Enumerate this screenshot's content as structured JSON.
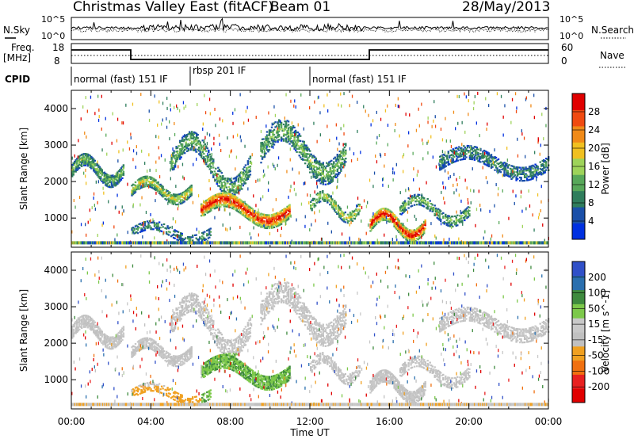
{
  "header": {
    "title": "Christmas Valley East (fitACF)",
    "beam": "Beam 01",
    "date": "28/May/2013"
  },
  "panels": {
    "nsky": {
      "label": "N.Sky",
      "right_label": "N.Search",
      "y_ticks": [
        "10^5",
        "10^0"
      ],
      "right_ticks": [
        "10^5",
        "10^0"
      ]
    },
    "freq": {
      "label": "Freq.",
      "unit": "[MHz]",
      "y_ticks": [
        "18",
        "8"
      ],
      "right_label": "Nave",
      "right_ticks": [
        "60",
        "0"
      ]
    },
    "cpid": {
      "label": "CPID",
      "modes": [
        {
          "text": "normal (fast) 151 IF",
          "start": 0,
          "end": 6
        },
        {
          "text": "rbsp 201 IF",
          "start": 6,
          "end": 12
        },
        {
          "text": "normal (fast) 151 IF",
          "start": 12,
          "end": 24
        }
      ]
    }
  },
  "colors": {
    "power": [
      "#0030e0",
      "#1a4fa8",
      "#2f7d5c",
      "#58a85a",
      "#9ed35a",
      "#f0c020",
      "#f08a18",
      "#f04a10",
      "#e00000"
    ],
    "velocity": [
      "#3050c8",
      "#2a6fae",
      "#3e8a3e",
      "#7cc84a",
      "#c8c8c8",
      "#c0c0c0",
      "#f0a020",
      "#f07010",
      "#e82020",
      "#e00000"
    ]
  },
  "chart_data": [
    {
      "type": "heatmap",
      "name": "power",
      "ylabel": "Slant Range [km]",
      "x_ticks": [
        "00:00",
        "04:00",
        "08:00",
        "12:00",
        "16:00",
        "20:00",
        "00:00"
      ],
      "y_ticks": [
        1000,
        2000,
        3000,
        4000
      ],
      "xlim": [
        0,
        24
      ],
      "ylim": [
        200,
        4500
      ],
      "colorbar": {
        "label": "Power [dB]",
        "ticks": [
          4,
          8,
          12,
          16,
          20,
          24,
          28
        ],
        "range": [
          0,
          32
        ]
      }
    },
    {
      "type": "heatmap",
      "name": "velocity",
      "ylabel": "Slant Range [km]",
      "xlabel": "Time UT",
      "x_ticks": [
        "00:00",
        "04:00",
        "08:00",
        "12:00",
        "16:00",
        "20:00",
        "00:00"
      ],
      "y_ticks": [
        1000,
        2000,
        3000,
        4000
      ],
      "xlim": [
        0,
        24
      ],
      "ylim": [
        200,
        4500
      ],
      "colorbar": {
        "label": "Velocity [m s^-1]",
        "ticks": [
          200,
          100,
          50,
          15,
          -15,
          -50,
          -100,
          -200
        ]
      }
    }
  ]
}
